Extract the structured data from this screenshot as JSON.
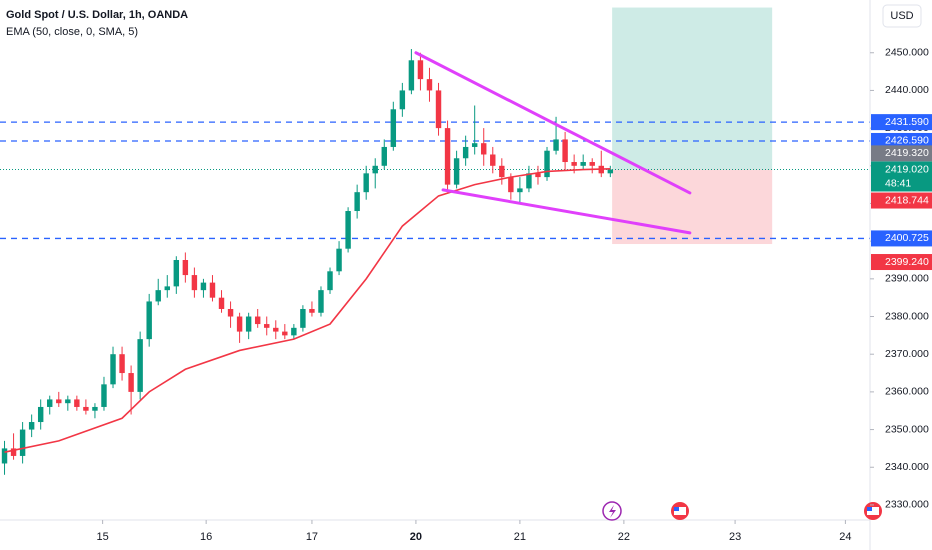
{
  "chart_data": {
    "type": "candlestick",
    "title": "Gold Spot / U.S. Dollar, 1h, OANDA",
    "subtitle": "EMA (50, close, 0, SMA, 5)",
    "currency": "USD",
    "up_color": "#089981",
    "down_color": "#f23645",
    "xlim": [
      -0.5,
      95.5
    ],
    "ylim": [
      2326,
      2464
    ],
    "xticks": [
      {
        "value": 10.85,
        "label": "15"
      },
      {
        "value": 22.3,
        "label": "16"
      },
      {
        "value": 34,
        "label": "17"
      },
      {
        "value": 45.5,
        "label": "20"
      },
      {
        "value": 57,
        "label": "21"
      },
      {
        "value": 68.5,
        "label": "22"
      },
      {
        "value": 80.8,
        "label": "23"
      },
      {
        "value": 93,
        "label": "24"
      }
    ],
    "yticks": [
      {
        "value": 2330,
        "label": "2330.000"
      },
      {
        "value": 2340,
        "label": "2340.000"
      },
      {
        "value": 2350,
        "label": "2350.000"
      },
      {
        "value": 2360,
        "label": "2360.000"
      },
      {
        "value": 2370,
        "label": "2370.000"
      },
      {
        "value": 2380,
        "label": "2380.000"
      },
      {
        "value": 2390,
        "label": "2390.000"
      },
      {
        "value": 2400,
        "label": "2400.000"
      },
      {
        "value": 2410,
        "label": "2410.000"
      },
      {
        "value": 2420,
        "label": "2420.000"
      },
      {
        "value": 2430,
        "label": "2430.000"
      },
      {
        "value": 2440,
        "label": "2440.000"
      },
      {
        "value": 2450,
        "label": "2450.000"
      }
    ],
    "candles": [
      [
        2341,
        2347,
        2338,
        2345
      ],
      [
        2345,
        2349,
        2342,
        2343
      ],
      [
        2343,
        2352,
        2341,
        2350
      ],
      [
        2350,
        2354,
        2348,
        2352
      ],
      [
        2352,
        2358,
        2350,
        2356
      ],
      [
        2356,
        2359,
        2354,
        2358
      ],
      [
        2358,
        2360,
        2356,
        2357
      ],
      [
        2357,
        2359,
        2355,
        2358
      ],
      [
        2358,
        2359,
        2355,
        2356
      ],
      [
        2356,
        2358,
        2354,
        2355
      ],
      [
        2355,
        2357,
        2353,
        2356
      ],
      [
        2356,
        2364,
        2355,
        2362
      ],
      [
        2362,
        2372,
        2361,
        2370
      ],
      [
        2370,
        2372,
        2363,
        2365
      ],
      [
        2365,
        2367,
        2354,
        2360
      ],
      [
        2360,
        2376,
        2358,
        2374
      ],
      [
        2374,
        2386,
        2372,
        2384
      ],
      [
        2384,
        2390,
        2383,
        2387
      ],
      [
        2387,
        2391,
        2385,
        2388
      ],
      [
        2388,
        2396,
        2386,
        2395
      ],
      [
        2395,
        2397,
        2389,
        2391
      ],
      [
        2391,
        2393,
        2385,
        2387
      ],
      [
        2387,
        2390,
        2385,
        2389
      ],
      [
        2389,
        2391,
        2384,
        2385
      ],
      [
        2385,
        2387,
        2381,
        2382
      ],
      [
        2382,
        2384,
        2377,
        2380
      ],
      [
        2380,
        2381,
        2373,
        2376
      ],
      [
        2376,
        2381,
        2374,
        2380
      ],
      [
        2380,
        2382,
        2377,
        2378
      ],
      [
        2378,
        2380,
        2375,
        2377
      ],
      [
        2377,
        2379,
        2374,
        2376
      ],
      [
        2376,
        2378,
        2374,
        2375
      ],
      [
        2375,
        2378,
        2374,
        2377
      ],
      [
        2377,
        2383,
        2376,
        2382
      ],
      [
        2382,
        2384,
        2380,
        2381
      ],
      [
        2381,
        2388,
        2380,
        2387
      ],
      [
        2387,
        2393,
        2386,
        2392
      ],
      [
        2392,
        2400,
        2391,
        2398
      ],
      [
        2398,
        2409,
        2397,
        2408
      ],
      [
        2408,
        2415,
        2406,
        2413
      ],
      [
        2413,
        2420,
        2411,
        2418
      ],
      [
        2418,
        2422,
        2414,
        2420
      ],
      [
        2420,
        2427,
        2419,
        2425
      ],
      [
        2425,
        2437,
        2424,
        2435
      ],
      [
        2435,
        2442,
        2433,
        2440
      ],
      [
        2440,
        2451,
        2439,
        2448
      ],
      [
        2448,
        2450,
        2440,
        2443
      ],
      [
        2443,
        2446,
        2437,
        2440
      ],
      [
        2440,
        2442,
        2428,
        2430
      ],
      [
        2430,
        2432,
        2413,
        2415
      ],
      [
        2415,
        2424,
        2414,
        2422
      ],
      [
        2422,
        2428,
        2420,
        2425
      ],
      [
        2425,
        2436,
        2423,
        2426
      ],
      [
        2426,
        2430,
        2420,
        2423
      ],
      [
        2423,
        2425,
        2418,
        2420
      ],
      [
        2420,
        2422,
        2415,
        2417
      ],
      [
        2417,
        2418,
        2411,
        2413
      ],
      [
        2413,
        2417,
        2410,
        2414
      ],
      [
        2414,
        2420,
        2413,
        2418
      ],
      [
        2418,
        2420,
        2415,
        2417
      ],
      [
        2417,
        2425,
        2416,
        2424
      ],
      [
        2424,
        2433,
        2423,
        2427
      ],
      [
        2427,
        2429,
        2419,
        2421
      ],
      [
        2421,
        2423,
        2418,
        2420
      ],
      [
        2420,
        2423,
        2419,
        2421
      ],
      [
        2421,
        2422,
        2418,
        2420
      ],
      [
        2420,
        2424,
        2417,
        2418
      ],
      [
        2418,
        2420,
        2417,
        2419.02
      ]
    ],
    "ema": {
      "color": "#f23645",
      "x": [
        0,
        6,
        13,
        16,
        20,
        26,
        32,
        36,
        40,
        44,
        48,
        52,
        56,
        60,
        64,
        67
      ],
      "values": [
        2344,
        2347,
        2353,
        2360,
        2366,
        2371,
        2374,
        2378,
        2390,
        2404,
        2412,
        2415,
        2417,
        2418.5,
        2419,
        2419.2
      ]
    },
    "trend_lines": {
      "color": "#e040fb",
      "lines": [
        {
          "x": [
            45.5,
            75.8
          ],
          "values": [
            2450,
            2412.8
          ]
        },
        {
          "x": [
            48.5,
            75.8
          ],
          "values": [
            2413.6,
            2402.2
          ]
        }
      ]
    },
    "position": {
      "x": [
        67.2,
        84.9
      ],
      "target": 2462,
      "entry": 2419,
      "stop": 2399.24
    },
    "price_labels": [
      {
        "value": 2431.59,
        "label": "2431.590",
        "color": "#2962ff",
        "line": "dashed"
      },
      {
        "value": 2426.59,
        "label": "2426.590",
        "color": "#2962ff",
        "line": "dashed"
      },
      {
        "value": 2419.32,
        "label": "2419.320",
        "color": "#787b86"
      },
      {
        "value": 2419.02,
        "label": "2419.020",
        "color": "#089981",
        "line": "dotted"
      },
      {
        "value": 2418.744,
        "label": "2418.744",
        "color": "#f23645"
      },
      {
        "value": 2400.725,
        "label": "2400.725",
        "color": "#2962ff",
        "line": "dashed"
      },
      {
        "value": 2399.24,
        "label": "2399.240",
        "color": "#f23645"
      }
    ],
    "countdown": "48:41"
  }
}
